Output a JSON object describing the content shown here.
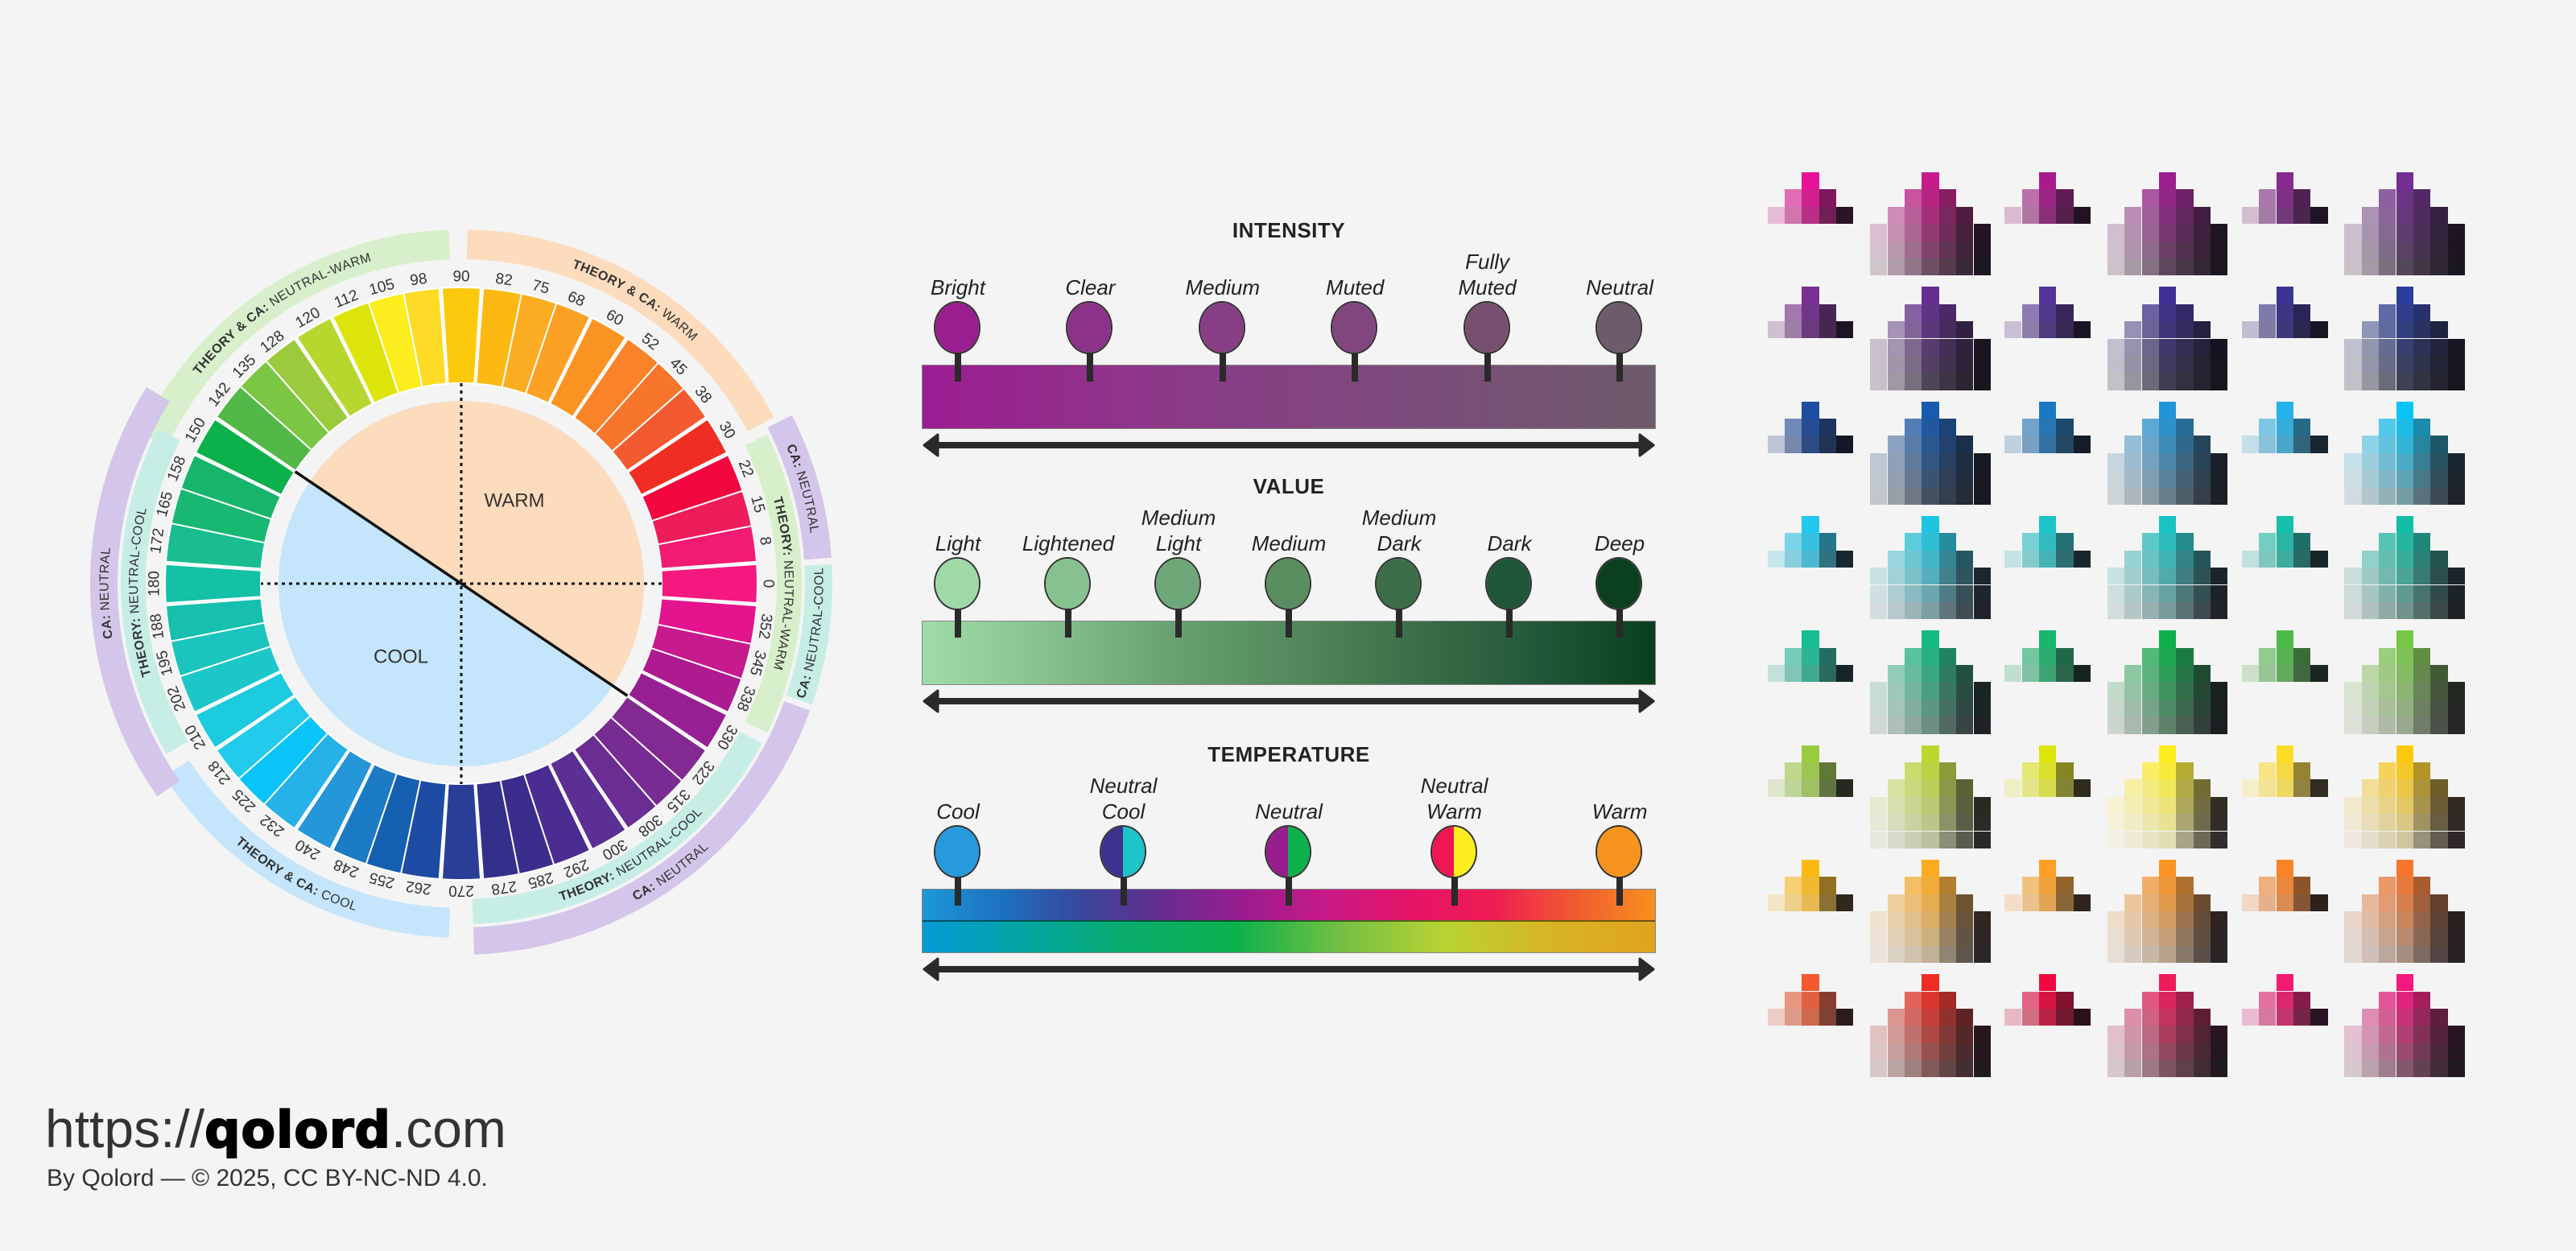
{
  "wheel": {
    "center_labels": {
      "warm": "WARM",
      "cool": "COOL"
    },
    "segments": [
      {
        "hue": 0,
        "label": "0",
        "color": "#f5197f"
      },
      {
        "hue": 8,
        "label": "8",
        "color": "#f21a73"
      },
      {
        "hue": 15,
        "label": "15",
        "color": "#ef1c5c"
      },
      {
        "hue": 22,
        "label": "22",
        "color": "#f2083f"
      },
      {
        "hue": 30,
        "label": "30",
        "color": "#f02d22"
      },
      {
        "hue": 38,
        "label": "38",
        "color": "#f45a30"
      },
      {
        "hue": 45,
        "label": "45",
        "color": "#f7762c"
      },
      {
        "hue": 52,
        "label": "52",
        "color": "#fa8228"
      },
      {
        "hue": 60,
        "label": "60",
        "color": "#fc9424"
      },
      {
        "hue": 68,
        "label": "68",
        "color": "#fda125"
      },
      {
        "hue": 75,
        "label": "75",
        "color": "#fdad22"
      },
      {
        "hue": 82,
        "label": "82",
        "color": "#fdb913"
      },
      {
        "hue": 90,
        "label": "90",
        "color": "#fdc90c"
      },
      {
        "hue": 98,
        "label": "98",
        "color": "#fddb26"
      },
      {
        "hue": 105,
        "label": "105",
        "color": "#fcee1e"
      },
      {
        "hue": 112,
        "label": "112",
        "color": "#dde40a"
      },
      {
        "hue": 120,
        "label": "120",
        "color": "#b6d72e"
      },
      {
        "hue": 128,
        "label": "128",
        "color": "#9bcb3c"
      },
      {
        "hue": 135,
        "label": "135",
        "color": "#7bc643"
      },
      {
        "hue": 142,
        "label": "142",
        "color": "#52b847"
      },
      {
        "hue": 150,
        "label": "150",
        "color": "#0db14b"
      },
      {
        "hue": 158,
        "label": "158",
        "color": "#17b56c"
      },
      {
        "hue": 165,
        "label": "165",
        "color": "#19b872"
      },
      {
        "hue": 172,
        "label": "172",
        "color": "#19bd8f"
      },
      {
        "hue": 180,
        "label": "180",
        "color": "#14c0a6"
      },
      {
        "hue": 188,
        "label": "188",
        "color": "#16bfae"
      },
      {
        "hue": 195,
        "label": "195",
        "color": "#1bc4bd"
      },
      {
        "hue": 202,
        "label": "202",
        "color": "#1cc7c9"
      },
      {
        "hue": 210,
        "label": "210",
        "color": "#1ccbe0"
      },
      {
        "hue": 218,
        "label": "218",
        "color": "#22cbec"
      },
      {
        "hue": 225,
        "label": "225",
        "color": "#08c4f8"
      },
      {
        "hue": 232,
        "label": "232",
        "color": "#27b1e9"
      },
      {
        "hue": 240,
        "label": "240",
        "color": "#2596d8"
      },
      {
        "hue": 248,
        "label": "248",
        "color": "#1b7bc4"
      },
      {
        "hue": 255,
        "label": "255",
        "color": "#155fb0"
      },
      {
        "hue": 262,
        "label": "262",
        "color": "#1e4ba3"
      },
      {
        "hue": 270,
        "label": "270",
        "color": "#2a3e97"
      },
      {
        "hue": 278,
        "label": "278",
        "color": "#33308c"
      },
      {
        "hue": 285,
        "label": "285",
        "color": "#3b2d8e"
      },
      {
        "hue": 292,
        "label": "292",
        "color": "#4b2d91"
      },
      {
        "hue": 300,
        "label": "300",
        "color": "#5b2f93"
      },
      {
        "hue": 308,
        "label": "308",
        "color": "#6a2d94"
      },
      {
        "hue": 315,
        "label": "315",
        "color": "#772c93"
      },
      {
        "hue": 322,
        "label": "322",
        "color": "#822a92"
      },
      {
        "hue": 330,
        "label": "330",
        "color": "#962092"
      },
      {
        "hue": 338,
        "label": "338",
        "color": "#ae1a8f"
      },
      {
        "hue": 345,
        "label": "345",
        "color": "#c71b8d"
      },
      {
        "hue": 352,
        "label": "352",
        "color": "#e3148e"
      }
    ],
    "bands": [
      {
        "bold": "THEORY & CA:",
        "text": "NEUTRAL-WARM",
        "hue_range": [
          92,
          155
        ],
        "color": "#d7f0cb",
        "ring": "combined"
      },
      {
        "bold": "THEORY & CA:",
        "text": "WARM",
        "hue_range": [
          28,
          89
        ],
        "color": "#fddbbd",
        "ring": "combined"
      },
      {
        "bold": "THEORY:",
        "text": "NEUTRAL-WARM",
        "hue_range": [
          -26,
          26
        ],
        "color": "#d7f0cb",
        "ring": "theory"
      },
      {
        "bold": "CA:",
        "text": "NEUTRAL",
        "hue_range": [
          4,
          27
        ],
        "color": "#d3c6ea",
        "ring": "ca"
      },
      {
        "bold": "CA:",
        "text": "NEUTRAL-COOL",
        "hue_range": [
          -19,
          3
        ],
        "color": "#c6eee5",
        "ring": "ca"
      },
      {
        "bold": "THEORY:",
        "text": "NEUTRAL-COOL",
        "hue_range": [
          -88,
          -28
        ],
        "color": "#c6eee5",
        "ring": "theory"
      },
      {
        "bold": "CA:",
        "text": "NEUTRAL",
        "hue_range": [
          -88,
          -20
        ],
        "color": "#d3c6ea",
        "ring": "ca"
      },
      {
        "bold": "THEORY & CA:",
        "text": "COOL",
        "hue_range": [
          213,
          268
        ],
        "color": "#c4e5fb",
        "ring": "combined"
      },
      {
        "bold": "THEORY:",
        "text": "NEUTRAL-COOL",
        "hue_range": [
          153,
          210
        ],
        "color": "#c6eee5",
        "ring": "theory"
      },
      {
        "bold": "CA:",
        "text": "NEUTRAL",
        "hue_range": [
          148,
          215
        ],
        "color": "#d3c6ea",
        "ring": "ca"
      }
    ],
    "colors": {
      "warm_fill": "#fddbbd",
      "cool_fill": "#c4e5fb"
    }
  },
  "scales": [
    {
      "title": "INTENSITY",
      "stops": [
        {
          "lines": [
            "Bright"
          ],
          "colors": [
            "#9b1e90"
          ]
        },
        {
          "lines": [
            "Clear"
          ],
          "colors": [
            "#8c3288"
          ]
        },
        {
          "lines": [
            "Medium"
          ],
          "colors": [
            "#883e85"
          ]
        },
        {
          "lines": [
            "Muted"
          ],
          "colors": [
            "#80467d"
          ]
        },
        {
          "lines": [
            "Fully",
            "Muted"
          ],
          "colors": [
            "#77506f"
          ]
        },
        {
          "lines": [
            "Neutral"
          ],
          "colors": [
            "#6d5b69"
          ]
        }
      ],
      "bar_gradients": [
        [
          "#9c1c92",
          "#8c3a88",
          "#7c4c7c",
          "#6d5a6a"
        ]
      ]
    },
    {
      "title": "VALUE",
      "stops": [
        {
          "lines": [
            "Light"
          ],
          "colors": [
            "#a0d9a8"
          ]
        },
        {
          "lines": [
            "Lightened"
          ],
          "colors": [
            "#86c290"
          ]
        },
        {
          "lines": [
            "Medium",
            "Light"
          ],
          "colors": [
            "#6fa878"
          ]
        },
        {
          "lines": [
            "Medium"
          ],
          "colors": [
            "#588e60"
          ]
        },
        {
          "lines": [
            "Medium",
            "Dark"
          ],
          "colors": [
            "#3b6d48"
          ]
        },
        {
          "lines": [
            "Dark"
          ],
          "colors": [
            "#20573a"
          ]
        },
        {
          "lines": [
            "Deep"
          ],
          "colors": [
            "#0b401f"
          ]
        }
      ],
      "bar_gradients": [
        [
          "#a0dca8",
          "#86c28e",
          "#68a373",
          "#548a5d",
          "#3c7049",
          "#23583a",
          "#0a3f1e"
        ]
      ]
    },
    {
      "title": "TEMPERATURE",
      "stops": [
        {
          "lines": [
            "Cool"
          ],
          "colors": [
            "#2799dd"
          ]
        },
        {
          "lines": [
            "Neutral",
            "Cool"
          ],
          "colors": [
            "#3d3190",
            "#1cc3c9"
          ]
        },
        {
          "lines": [
            "Neutral"
          ],
          "colors": [
            "#971d8e",
            "#0db14b"
          ]
        },
        {
          "lines": [
            "Neutral",
            "Warm"
          ],
          "colors": [
            "#ef1651",
            "#fcee1e"
          ]
        },
        {
          "lines": [
            "Warm"
          ],
          "colors": [
            "#f7941d"
          ]
        }
      ],
      "bar_gradients": [
        [
          "#1a9ad6",
          "#1d6fc0",
          "#3a4598",
          "#6a2c90",
          "#9c1c8f",
          "#c91a87",
          "#e61467",
          "#ef1c52",
          "#f05a30",
          "#f7901e"
        ],
        [
          "#069bd7",
          "#03a6a0",
          "#0bad6c",
          "#0db14b",
          "#74c043",
          "#b9d332",
          "#d8b424",
          "#e0a31f"
        ]
      ]
    }
  ],
  "swatches": {
    "rows": [
      [
        "#e8129a",
        "#c81a8a",
        "#a81b8c",
        "#9c1f8f",
        "#862a8e",
        "#722e92"
      ],
      [
        "#7a2f94",
        "#652f92",
        "#54349a",
        "#413195",
        "#3b3495",
        "#2c3e9b"
      ],
      [
        "#1e4ea3",
        "#175aaf",
        "#1a78c3",
        "#2195d8",
        "#24b2e9",
        "#06c4f8"
      ],
      [
        "#22c8ee",
        "#1cc6e0",
        "#1cc4c9",
        "#19c3c2",
        "#14bfab",
        "#12bea6"
      ],
      [
        "#1abd96",
        "#17ba80",
        "#18b66e",
        "#0db14b",
        "#4dba47",
        "#77c745"
      ],
      [
        "#98cb3e",
        "#bad72e",
        "#dde40a",
        "#fdee1e",
        "#fddb26",
        "#fdc90c"
      ],
      [
        "#fdb913",
        "#fdaa22",
        "#fda025",
        "#fc9424",
        "#fa8228",
        "#f7762c"
      ],
      [
        "#f45a30",
        "#f02d22",
        "#f2083f",
        "#ef1c5c",
        "#f21a73",
        "#f5197f"
      ]
    ]
  },
  "footer": {
    "url_prefix": "https://",
    "url_brand": "qolord",
    "url_suffix": ".com",
    "credit": "By Qolord — © 2025, CC BY-NC-ND 4.0."
  }
}
